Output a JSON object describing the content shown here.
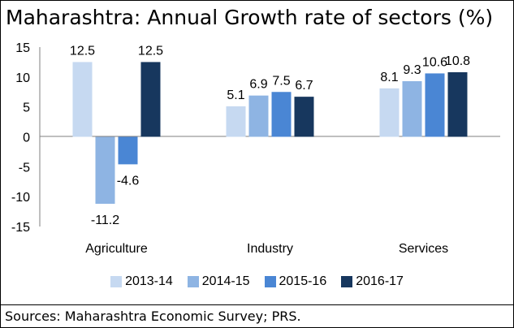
{
  "title": "Maharashtra: Annual Growth rate of sectors  (%)",
  "source": "Sources: Maharashtra Economic Survey; PRS.",
  "colors": {
    "2013-14": "#c6d9f1",
    "2014-15": "#8eb4e3",
    "2015-16": "#4a86d4",
    "2016-17": "#17375e"
  },
  "chart_data": {
    "type": "bar",
    "categories": [
      "Agriculture",
      "Industry",
      "Services"
    ],
    "series": [
      {
        "name": "2013-14",
        "values": [
          12.5,
          5.1,
          8.1
        ]
      },
      {
        "name": "2014-15",
        "values": [
          -11.2,
          6.9,
          9.3
        ]
      },
      {
        "name": "2015-16",
        "values": [
          -4.6,
          7.5,
          10.6
        ]
      },
      {
        "name": "2016-17",
        "values": [
          12.5,
          6.7,
          10.8
        ]
      }
    ],
    "value_labels": [
      [
        "12.5",
        "5.1",
        "8.1"
      ],
      [
        "-11.2",
        "6.9",
        "9.3"
      ],
      [
        "-4.6",
        "7.5",
        "10.6"
      ],
      [
        "12.5",
        "6.7",
        "10.8"
      ]
    ],
    "ylim": [
      -15,
      15
    ],
    "yticks": [
      "15",
      "10",
      "5",
      "0",
      "-5",
      "-10",
      "-15"
    ],
    "ytick_values": [
      15,
      10,
      5,
      0,
      -5,
      -10,
      -15
    ],
    "grid": false,
    "legend": "bottom"
  }
}
